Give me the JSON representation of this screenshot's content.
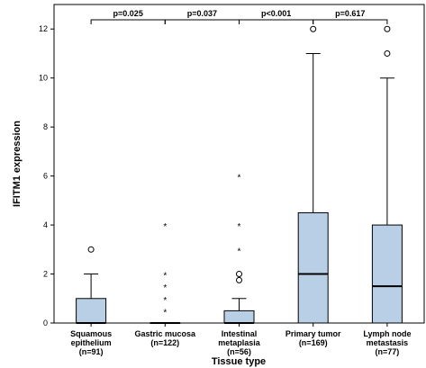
{
  "chart_data": {
    "type": "boxplot",
    "xlabel": "Tissue type",
    "ylabel": "IFITM1 expression",
    "ylim": [
      0,
      13
    ],
    "yticks": [
      0,
      2,
      4,
      6,
      8,
      10,
      12
    ],
    "box_color": "#b9cfe6",
    "categories": [
      {
        "lines": [
          "Squamous",
          "epithelium",
          "(n=91)"
        ],
        "q1": 0,
        "median": 0,
        "q3": 1,
        "whisker_low": 0,
        "whisker_high": 2,
        "outliers": [
          {
            "y": 3,
            "marker": "circle"
          }
        ]
      },
      {
        "lines": [
          "Gastric mucosa",
          "(n=122)"
        ],
        "q1": 0,
        "median": 0,
        "q3": 0,
        "whisker_low": 0,
        "whisker_high": 0,
        "outliers": [
          {
            "y": 0.5,
            "marker": "star"
          },
          {
            "y": 1,
            "marker": "star"
          },
          {
            "y": 1.5,
            "marker": "star"
          },
          {
            "y": 2,
            "marker": "star"
          },
          {
            "y": 4,
            "marker": "star"
          }
        ]
      },
      {
        "lines": [
          "Intestinal",
          "metaplasia",
          "(n=56)"
        ],
        "q1": 0,
        "median": 0,
        "q3": 0.5,
        "whisker_low": 0,
        "whisker_high": 1,
        "outliers": [
          {
            "y": 1.75,
            "marker": "circle"
          },
          {
            "y": 2,
            "marker": "circle"
          },
          {
            "y": 3,
            "marker": "star"
          },
          {
            "y": 4,
            "marker": "star"
          },
          {
            "y": 6,
            "marker": "star"
          }
        ]
      },
      {
        "lines": [
          "Primary tumor",
          "(n=169)"
        ],
        "q1": 0,
        "median": 2,
        "q3": 4.5,
        "whisker_low": 0,
        "whisker_high": 11,
        "outliers": [
          {
            "y": 12,
            "marker": "circle"
          }
        ]
      },
      {
        "lines": [
          "Lymph node",
          "metastasis",
          "(n=77)"
        ],
        "q1": 0,
        "median": 1.5,
        "q3": 4,
        "whisker_low": 0,
        "whisker_high": 10,
        "outliers": [
          {
            "y": 11,
            "marker": "circle"
          },
          {
            "y": 12,
            "marker": "circle"
          }
        ]
      }
    ],
    "comparisons": [
      {
        "from": 0,
        "to": 1,
        "label": "p=0.025"
      },
      {
        "from": 1,
        "to": 2,
        "label": "p=0.037"
      },
      {
        "from": 2,
        "to": 3,
        "label": "p<0.001"
      },
      {
        "from": 3,
        "to": 4,
        "label": "p=0.617"
      }
    ]
  }
}
